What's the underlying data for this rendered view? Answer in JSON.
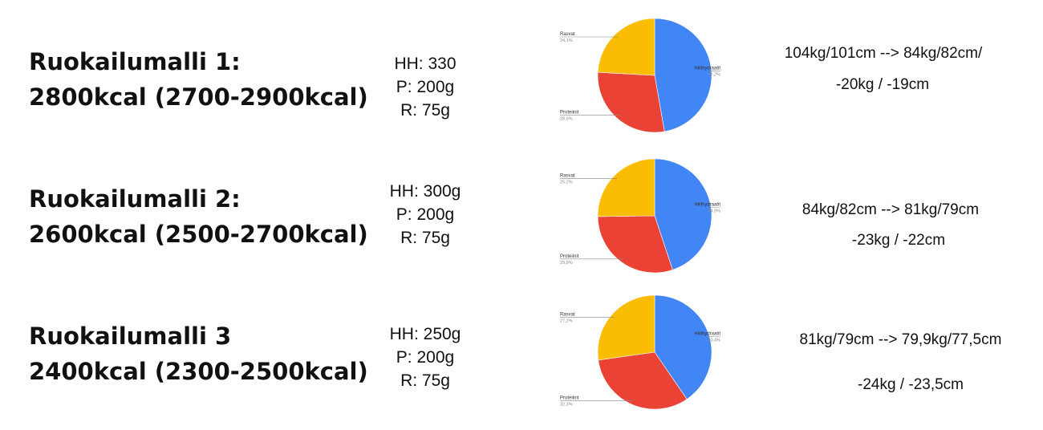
{
  "colors": {
    "hiilihydraatit": "#4285F4",
    "proteiinit": "#EA4335",
    "rasvat": "#FBBC04",
    "leader": "#888888"
  },
  "rows": [
    {
      "title_line1": "Ruokailumalli 1:",
      "title_line2": "2800kcal (2700-2900kcal)",
      "hh": "HH: 330",
      "p": "P: 200g",
      "r": "R: 75g",
      "note_line1": "104kg/101cm --> 84kg/82cm/",
      "note_line2": "-20kg / -19cm"
    },
    {
      "title_line1": "Ruokailumalli 2:",
      "title_line2": "2600kcal (2500-2700kcal)",
      "hh": "HH: 300g",
      "p": "P: 200g",
      "r": "R: 75g",
      "note_line1": "84kg/82cm --> 81kg/79cm",
      "note_line2": "-23kg / -22cm"
    },
    {
      "title_line1": "Ruokailumalli 3",
      "title_line2": "2400kcal (2300-2500kcal)",
      "hh": "HH: 250g",
      "p": "P: 200g",
      "r": "R: 75g",
      "note_line1": "81kg/79cm --> 79,9kg/77,5cm",
      "note_line2": "-24kg / -23,5cm"
    }
  ],
  "chart_data": [
    {
      "type": "pie",
      "labels": [
        "Hiilihydraatit",
        "Proteiinit",
        "Rasvat"
      ],
      "values": [
        47.2,
        28.6,
        24.1
      ],
      "value_labels": [
        "47,2%",
        "28,6%",
        "24,1%"
      ]
    },
    {
      "type": "pie",
      "labels": [
        "Hiilihydraatit",
        "Proteiinit",
        "Rasvat"
      ],
      "values": [
        44.9,
        29.9,
        25.2
      ],
      "value_labels": [
        "44,9%",
        "29,9%",
        "25,2%"
      ]
    },
    {
      "type": "pie",
      "labels": [
        "Hiilihydraatit",
        "Proteiinit",
        "Rasvat"
      ],
      "values": [
        40.4,
        32.3,
        27.2
      ],
      "value_labels": [
        "40,4%",
        "32,3%",
        "27,2%"
      ]
    }
  ]
}
